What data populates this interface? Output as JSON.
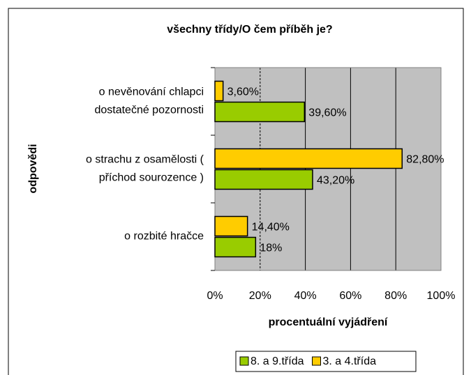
{
  "chart_data": {
    "type": "bar",
    "orientation": "horizontal",
    "title": "všechny třídy/O čem příběh je?",
    "x_label": "procentuální vyjádření",
    "y_label": "odpovědi",
    "categories": [
      [
        "o nevěnování chlapci",
        "dostatečné pozornosti"
      ],
      [
        "o strachu z osamělosti (",
        "příchod sourozence )"
      ],
      [
        "o rozbité hračce"
      ]
    ],
    "series": [
      {
        "name": "8. a 9.třída",
        "color": "#99cc00",
        "values": [
          39.6,
          43.2,
          18
        ],
        "value_labels": [
          "39,60%",
          "43,20%",
          "18%"
        ]
      },
      {
        "name": "3. a 4.třída",
        "color": "#ffcc00",
        "values": [
          3.6,
          82.8,
          14.4
        ],
        "value_labels": [
          "3,60%",
          "82,80%",
          "14,40%"
        ]
      }
    ],
    "xlim": [
      0,
      100
    ],
    "xticks": [
      {
        "value": 0,
        "label": "0%"
      },
      {
        "value": 20,
        "label": "20%"
      },
      {
        "value": 40,
        "label": "40%"
      },
      {
        "value": 60,
        "label": "60%"
      },
      {
        "value": 80,
        "label": "80%"
      },
      {
        "value": 100,
        "label": "100%"
      }
    ],
    "grid": true,
    "plot_background": "#c0c0c0",
    "legend": "bottom"
  }
}
